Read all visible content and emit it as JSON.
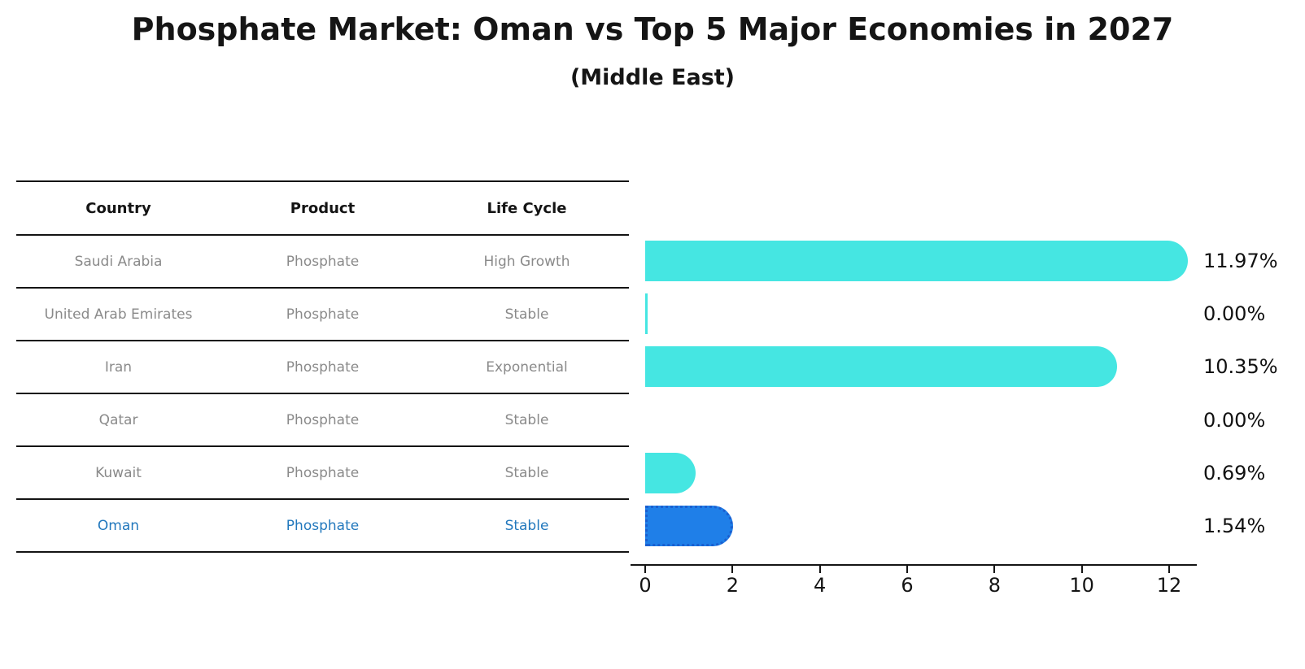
{
  "title": "Phosphate Market: Oman vs Top 5 Major Economies in 2027",
  "subtitle": "(Middle East)",
  "table": {
    "headers": [
      "Country",
      "Product",
      "Life Cycle"
    ],
    "rows": [
      {
        "country": "Saudi Arabia",
        "product": "Phosphate",
        "life_cycle": "High Growth",
        "highlight": false
      },
      {
        "country": "United Arab Emirates",
        "product": "Phosphate",
        "life_cycle": "Stable",
        "highlight": false
      },
      {
        "country": "Iran",
        "product": "Phosphate",
        "life_cycle": "Exponential",
        "highlight": false
      },
      {
        "country": "Qatar",
        "product": "Phosphate",
        "life_cycle": "Stable",
        "highlight": false
      },
      {
        "country": "Kuwait",
        "product": "Phosphate",
        "life_cycle": "Stable",
        "highlight": false
      },
      {
        "country": "Oman",
        "product": "Phosphate",
        "life_cycle": "Stable",
        "highlight": true
      }
    ]
  },
  "chart_data": {
    "type": "bar",
    "orientation": "horizontal",
    "title": "Phosphate Market: Oman vs Top 5 Major Economies in 2027",
    "subtitle": "(Middle East)",
    "categories": [
      "Saudi Arabia",
      "United Arab Emirates",
      "Iran",
      "Qatar",
      "Kuwait",
      "Oman"
    ],
    "values": [
      11.97,
      0.0,
      10.35,
      0.0,
      0.69,
      1.54
    ],
    "value_labels": [
      "11.97%",
      "0.00%",
      "10.35%",
      "0.00%",
      "0.69%",
      "1.54%"
    ],
    "unit": "%",
    "xlabel": "",
    "ylabel": "",
    "xlim": [
      0,
      12
    ],
    "xticks": [
      0,
      2,
      4,
      6,
      8,
      10,
      12
    ],
    "grid": false,
    "legend": null,
    "highlight_index": 5,
    "sliver_indices": [
      1
    ]
  },
  "colors": {
    "bar": "#45e6e2",
    "highlight_bar": "#1f7fe8",
    "highlight_bar_border": "#1a5fd0",
    "highlight_text": "#2278bd",
    "row_text": "#8a8a8a",
    "header_text": "#141414",
    "axis": "#141414",
    "value_label_text": "#111111"
  }
}
